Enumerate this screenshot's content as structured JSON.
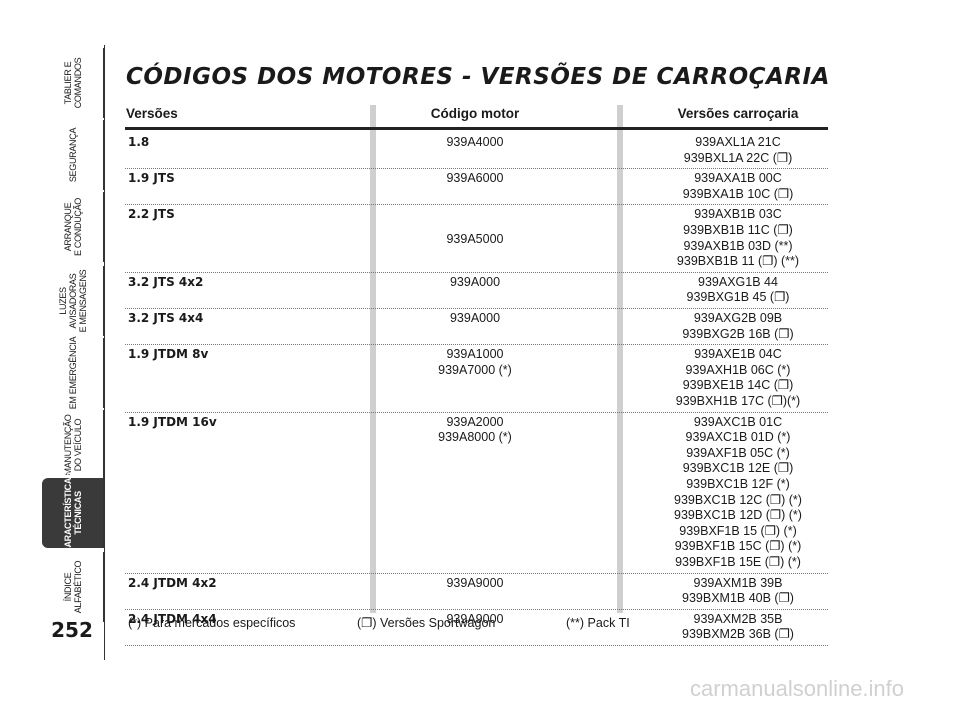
{
  "page_number": "252",
  "sidebar": {
    "tabs": [
      {
        "lines": [
          "TABLIER E",
          "COMANDOS"
        ]
      },
      {
        "lines": [
          "SEGURANÇA"
        ]
      },
      {
        "lines": [
          "ARRANQUE",
          "E CONDUÇÃO"
        ]
      },
      {
        "lines": [
          "LUZES",
          "AVISADORAS",
          "E MENSAGENS"
        ]
      },
      {
        "lines": [
          "EM EMERGÊNCIA"
        ]
      },
      {
        "lines": [
          "MANUTENÇÃO",
          "DO VEÍCULO"
        ]
      },
      {
        "lines": [
          "CARACTERÍSTICAS",
          "TÉCNICAS"
        ]
      },
      {
        "lines": [
          "ÍNDICE",
          "ALFABÉTICO"
        ]
      }
    ]
  },
  "header": {
    "title": "CÓDIGOS DOS MOTORES - VERSÕES DE CARROÇARIA"
  },
  "table": {
    "headers": [
      "Versões",
      "Código motor",
      "Versões carroçaria"
    ],
    "rows": [
      {
        "version": "1.8",
        "engine": [
          "939A4000"
        ],
        "body": [
          "939AXL1A 21C",
          "939BXL1A 22C (❐)"
        ]
      },
      {
        "version": "1.9 JTS",
        "engine": [
          "939A6000"
        ],
        "body": [
          "939AXA1B 00C",
          "939BXA1B 10C (❐)"
        ]
      },
      {
        "version": "2.2 JTS",
        "engine": [
          "939A5000"
        ],
        "body": [
          "939AXB1B 03C",
          "939BXB1B 11C (❐)",
          "939AXB1B 03D (**)",
          "939BXB1B 11 (❐) (**)"
        ]
      },
      {
        "version": "3.2 JTS 4x2",
        "engine": [
          "939A000"
        ],
        "body": [
          "939AXG1B 44",
          "939BXG1B 45 (❐)"
        ]
      },
      {
        "version": "3.2 JTS 4x4",
        "engine": [
          "939A000"
        ],
        "body": [
          "939AXG2B 09B",
          "939BXG2B 16B (❐)"
        ]
      },
      {
        "version": "1.9 JTDM 8v",
        "engine": [
          "939A1000",
          "939A7000 (*)"
        ],
        "body": [
          "939AXE1B 04C",
          "939AXH1B 06C (*)",
          "939BXE1B 14C (❐)",
          "939BXH1B 17C (❐)(*)"
        ]
      },
      {
        "version": "1.9 JTDM 16v",
        "engine": [
          "939A2000",
          "939A8000 (*)"
        ],
        "body": [
          "939AXC1B 01C",
          "939AXC1B 01D (*)",
          "939AXF1B 05C (*)",
          "939BXC1B 12E (❐)",
          "939BXC1B 12F (*)",
          "939BXC1B 12C (❐) (*)",
          "939BXC1B 12D (❐) (*)",
          "939BXF1B 15 (❐) (*)",
          "939BXF1B 15C (❐) (*)",
          "939BXF1B 15E (❐) (*)"
        ]
      },
      {
        "version": "2.4 JTDM 4x2",
        "engine": [
          "939A9000"
        ],
        "body": [
          "939AXM1B 39B",
          "939BXM1B 40B (❐)"
        ]
      },
      {
        "version": "2.4 JTDM 4x4",
        "engine": [
          "939A9000"
        ],
        "body": [
          "939AXM2B 35B",
          "939BXM2B 36B (❐)"
        ]
      }
    ]
  },
  "footnotes": [
    "(*) Para mercados específicos",
    "(❐) Versões Sportwagon",
    "(**) Pack TI"
  ],
  "watermark": "carmanualsonline.info"
}
